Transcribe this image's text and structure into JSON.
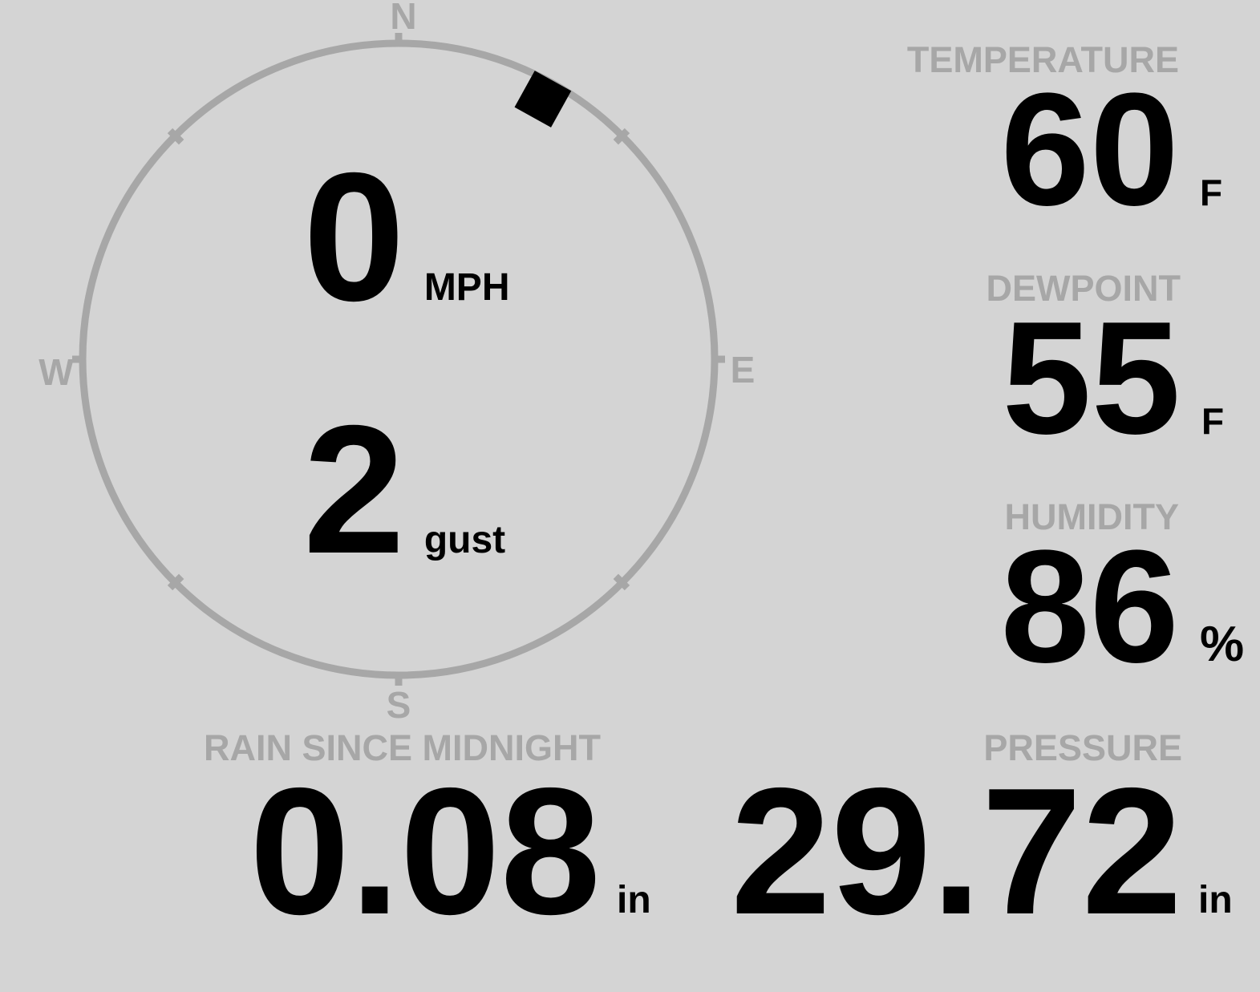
{
  "colors": {
    "background": "#d4d4d4",
    "muted_gray": "#a7a7a7",
    "value_ink": "#000000"
  },
  "compass": {
    "labels": {
      "north": "N",
      "east": "E",
      "south": "S",
      "west": "W"
    },
    "wind_direction_degrees": 29,
    "speed": {
      "value": "0",
      "unit": "MPH"
    },
    "gust": {
      "value": "2",
      "unit": "gust"
    }
  },
  "metrics": {
    "temperature": {
      "label": "TEMPERATURE",
      "value": "60",
      "unit": "F"
    },
    "dewpoint": {
      "label": "DEWPOINT",
      "value": "55",
      "unit": "F"
    },
    "humidity": {
      "label": "HUMIDITY",
      "value": "86",
      "unit": "%"
    },
    "rain_since_midnight": {
      "label": "RAIN SINCE MIDNIGHT",
      "value": "0.08",
      "unit": "in"
    },
    "pressure": {
      "label": "PRESSURE",
      "value": "29.72",
      "unit": "in"
    }
  }
}
